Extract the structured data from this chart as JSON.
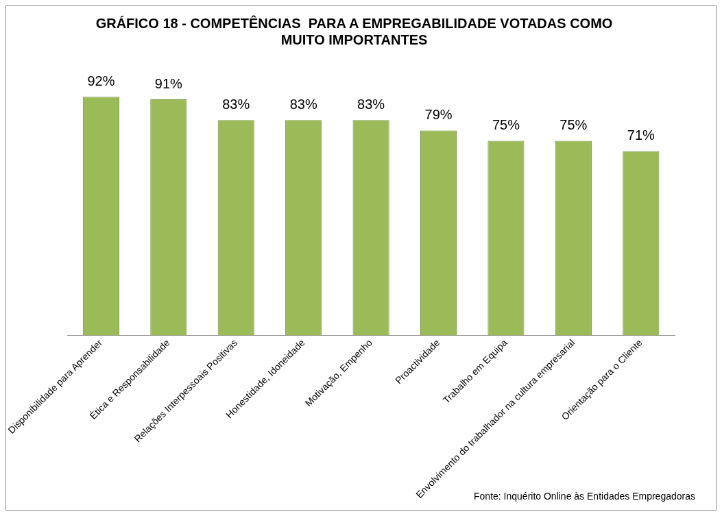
{
  "chart_data": {
    "type": "bar",
    "title": "GRÁFICO 18 - COMPETÊNCIAS  PARA A EMPREGABILIDADE VOTADAS COMO MUITO IMPORTANTES",
    "categories": [
      "Disponibilidade para Aprender",
      "Ética e Responsabilidade",
      "Relações Interpessoais Positivas",
      "Honestidade, Idoneidade",
      "Motivação, Empenho",
      "Proactividade",
      "Trabalho em Equipa",
      "Envolvimento do trabalhador na cultura empresarial",
      "Orientação para o Cliente"
    ],
    "values": [
      92,
      91,
      83,
      83,
      83,
      79,
      75,
      75,
      71
    ],
    "value_labels": [
      "92%",
      "91%",
      "83%",
      "83%",
      "83%",
      "79%",
      "75%",
      "75%",
      "71%"
    ],
    "color": "#9bbb59",
    "grid": false,
    "legend": false,
    "annotations": [
      "Fonte: Inquérito Online às Entidades Empregadoras"
    ]
  }
}
